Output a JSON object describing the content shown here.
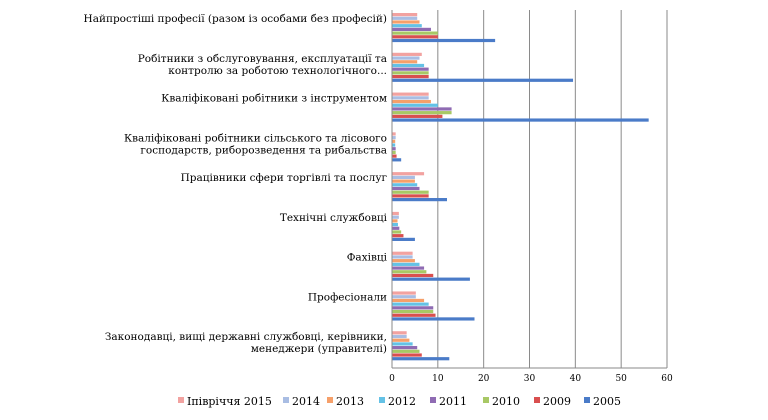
{
  "chart_data": {
    "type": "bar",
    "orientation": "horizontal",
    "title": "",
    "xlabel": "",
    "ylabel": "",
    "xlim": [
      0,
      60
    ],
    "xticks": [
      0,
      10,
      20,
      30,
      40,
      50,
      60
    ],
    "grid": true,
    "legend_position": "bottom",
    "categories": [
      [
        "Найпростіші професії (разом із особами без професій)"
      ],
      [
        "Робітники з обслуговування, експлуатації та",
        "контролю за роботою технологічного..."
      ],
      [
        "Кваліфіковані робітники з інструментом"
      ],
      [
        "Кваліфіковані робітники сільського та лісового",
        "господарств, риборозведення та рибальства"
      ],
      [
        "Працівники сфери торгівлі та послуг"
      ],
      [
        "Технічні службовці"
      ],
      [
        "Фахівці"
      ],
      [
        "Професіонали"
      ],
      [
        "Законодавці, вищі державні службовці, керівники,",
        "менеджери (управителі)"
      ]
    ],
    "series": [
      {
        "name": "Іпівріччя 2015",
        "color": "#f2a2a0",
        "values": [
          5.5,
          6.5,
          8.0,
          0.8,
          7.0,
          1.5,
          4.5,
          5.2,
          3.2
        ]
      },
      {
        "name": "2014",
        "color": "#a9bde3",
        "values": [
          5.5,
          6.0,
          8.0,
          0.8,
          5.0,
          1.5,
          4.5,
          5.2,
          3.2
        ]
      },
      {
        "name": "2013",
        "color": "#f6a06a",
        "values": [
          6.0,
          5.5,
          8.5,
          0.7,
          5.0,
          1.2,
          5.0,
          7.0,
          3.8
        ]
      },
      {
        "name": "2012",
        "color": "#64c2e6",
        "values": [
          6.5,
          7.0,
          10.0,
          0.7,
          5.5,
          1.3,
          6.0,
          8.0,
          4.5
        ]
      },
      {
        "name": "2011",
        "color": "#8f6bb3",
        "values": [
          8.5,
          8.0,
          13.0,
          0.8,
          6.0,
          1.6,
          7.0,
          9.0,
          5.5
        ]
      },
      {
        "name": "2010",
        "color": "#a8c865",
        "values": [
          10.0,
          8.0,
          13.0,
          0.8,
          8.0,
          2.0,
          7.5,
          9.0,
          6.0
        ]
      },
      {
        "name": "2009",
        "color": "#d94f4f",
        "values": [
          10.0,
          8.0,
          11.0,
          1.0,
          8.0,
          2.5,
          9.0,
          9.5,
          6.5
        ]
      },
      {
        "name": "2005",
        "color": "#4a7bc8",
        "values": [
          22.5,
          39.5,
          56.0,
          2.0,
          12.0,
          5.0,
          17.0,
          18.0,
          12.5
        ]
      }
    ]
  }
}
